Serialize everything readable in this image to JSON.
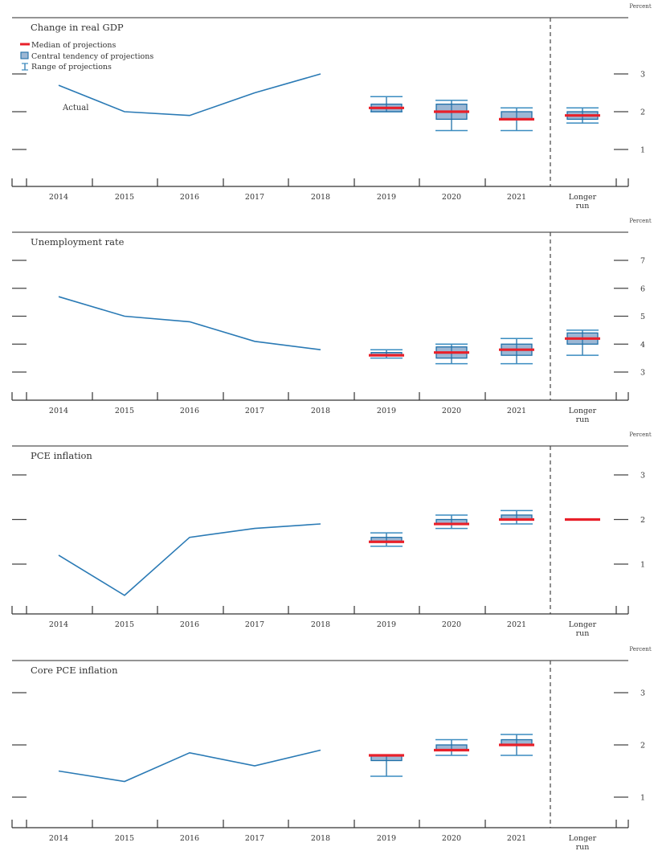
{
  "legend": {
    "median": "Median of projections",
    "central_tendency": "Central tendency of projections",
    "range": "Range of projections"
  },
  "colors": {
    "actual_line": "#2a7ab5",
    "median": "#e8202a",
    "box_fill": "#9cb7d4",
    "box_stroke": "#1f6fa8",
    "range": "#3a8cc0",
    "axis": "#333333"
  },
  "chart_data": [
    {
      "type": "line+boxplot",
      "title": "Change in real GDP",
      "unit_label": "Percent",
      "annotation": "Actual",
      "categories": [
        "2014",
        "2015",
        "2016",
        "2017",
        "2018",
        "2019",
        "2020",
        "2021",
        "Longer run"
      ],
      "yticks": [
        1,
        2,
        3
      ],
      "ylim": [
        0.1,
        3.6
      ],
      "actual": {
        "x": [
          "2014",
          "2015",
          "2016",
          "2017",
          "2018"
        ],
        "values": [
          2.7,
          2.0,
          1.9,
          2.5,
          3.0
        ]
      },
      "projections": [
        {
          "x": "2019",
          "median": 2.1,
          "central_tendency": [
            2.0,
            2.2
          ],
          "range": [
            2.0,
            2.4
          ]
        },
        {
          "x": "2020",
          "median": 2.0,
          "central_tendency": [
            1.8,
            2.2
          ],
          "range": [
            1.5,
            2.3
          ]
        },
        {
          "x": "2021",
          "median": 1.8,
          "central_tendency": [
            1.8,
            2.0
          ],
          "range": [
            1.5,
            2.1
          ]
        },
        {
          "x": "Longer run",
          "median": 1.9,
          "central_tendency": [
            1.8,
            2.0
          ],
          "range": [
            1.7,
            2.1
          ]
        }
      ]
    },
    {
      "type": "line+boxplot",
      "title": "Unemployment rate",
      "unit_label": "Percent",
      "categories": [
        "2014",
        "2015",
        "2016",
        "2017",
        "2018",
        "2019",
        "2020",
        "2021",
        "Longer run"
      ],
      "yticks": [
        3,
        4,
        5,
        6,
        7
      ],
      "ylim": [
        2.0,
        7.9
      ],
      "actual": {
        "x": [
          "2014",
          "2015",
          "2016",
          "2017",
          "2018"
        ],
        "values": [
          5.7,
          5.0,
          4.8,
          4.1,
          3.8
        ]
      },
      "projections": [
        {
          "x": "2019",
          "median": 3.6,
          "central_tendency": [
            3.6,
            3.7
          ],
          "range": [
            3.5,
            3.8
          ]
        },
        {
          "x": "2020",
          "median": 3.7,
          "central_tendency": [
            3.5,
            3.9
          ],
          "range": [
            3.3,
            4.0
          ]
        },
        {
          "x": "2021",
          "median": 3.8,
          "central_tendency": [
            3.6,
            4.0
          ],
          "range": [
            3.3,
            4.2
          ]
        },
        {
          "x": "Longer run",
          "median": 4.2,
          "central_tendency": [
            4.0,
            4.4
          ],
          "range": [
            3.6,
            4.5
          ]
        }
      ]
    },
    {
      "type": "line+boxplot",
      "title": "PCE inflation",
      "unit_label": "Percent",
      "categories": [
        "2014",
        "2015",
        "2016",
        "2017",
        "2018",
        "2019",
        "2020",
        "2021",
        "Longer run"
      ],
      "yticks": [
        1,
        2,
        3
      ],
      "ylim": [
        0.0,
        3.6
      ],
      "actual": {
        "x": [
          "2014",
          "2015",
          "2016",
          "2017",
          "2018"
        ],
        "values": [
          1.2,
          0.3,
          1.6,
          1.8,
          1.9
        ]
      },
      "projections": [
        {
          "x": "2019",
          "median": 1.5,
          "central_tendency": [
            1.5,
            1.6
          ],
          "range": [
            1.4,
            1.7
          ]
        },
        {
          "x": "2020",
          "median": 1.9,
          "central_tendency": [
            1.9,
            2.0
          ],
          "range": [
            1.8,
            2.1
          ]
        },
        {
          "x": "2021",
          "median": 2.0,
          "central_tendency": [
            2.0,
            2.1
          ],
          "range": [
            1.9,
            2.2
          ]
        },
        {
          "x": "Longer run",
          "median": 2.0,
          "central_tendency": [
            2.0,
            2.0
          ],
          "range": [
            2.0,
            2.0
          ]
        }
      ]
    },
    {
      "type": "line+boxplot",
      "title": "Core PCE inflation",
      "unit_label": "Percent",
      "categories": [
        "2014",
        "2015",
        "2016",
        "2017",
        "2018",
        "2019",
        "2020",
        "2021",
        "Longer run"
      ],
      "yticks": [
        1,
        2,
        3
      ],
      "ylim": [
        0.4,
        3.5
      ],
      "actual": {
        "x": [
          "2014",
          "2015",
          "2016",
          "2017",
          "2018"
        ],
        "values": [
          1.5,
          1.3,
          1.85,
          1.6,
          1.9
        ]
      },
      "projections": [
        {
          "x": "2019",
          "median": 1.8,
          "central_tendency": [
            1.7,
            1.8
          ],
          "range": [
            1.4,
            1.8
          ]
        },
        {
          "x": "2020",
          "median": 1.9,
          "central_tendency": [
            1.9,
            2.0
          ],
          "range": [
            1.8,
            2.1
          ]
        },
        {
          "x": "2021",
          "median": 2.0,
          "central_tendency": [
            2.0,
            2.1
          ],
          "range": [
            1.8,
            2.2
          ]
        }
      ]
    }
  ]
}
